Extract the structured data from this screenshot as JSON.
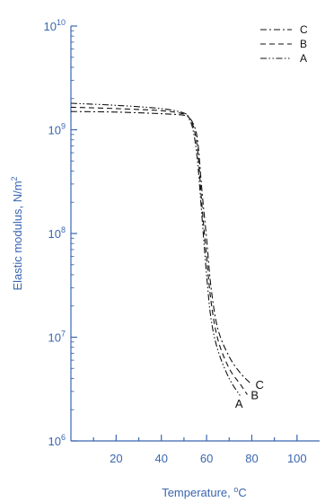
{
  "chart_data": {
    "type": "line",
    "xlabel": "Temperature, ",
    "xlabel_unit_sup": "o",
    "xlabel_unit": "C",
    "ylabel": "Elastic modulus, N/m",
    "ylabel_sup": "2",
    "y_scale": "log",
    "xlim": [
      0,
      110
    ],
    "ylim": [
      1000000,
      10000000000
    ],
    "x_ticks": [
      20,
      40,
      60,
      80,
      100
    ],
    "y_ticks": [
      {
        "value": 1000000,
        "base": "10",
        "exp": "6"
      },
      {
        "value": 10000000,
        "base": "10",
        "exp": "7"
      },
      {
        "value": 100000000,
        "base": "10",
        "exp": "8"
      },
      {
        "value": 1000000000,
        "base": "10",
        "exp": "9"
      },
      {
        "value": 10000000000,
        "base": "10",
        "exp": "10"
      }
    ],
    "grid": false,
    "legend_position": "top-right",
    "line_color": "#111111",
    "axis_color": "#3a66b0",
    "series": [
      {
        "name": "C",
        "dash": "dashdot",
        "points": [
          [
            0,
            1500000000
          ],
          [
            20,
            1480000000
          ],
          [
            40,
            1430000000
          ],
          [
            50,
            1380000000
          ],
          [
            52,
            1330000000
          ],
          [
            54,
            1150000000
          ],
          [
            56,
            800000000
          ],
          [
            58,
            250000000
          ],
          [
            60,
            90000000
          ],
          [
            62,
            30000000
          ],
          [
            65,
            12000000
          ],
          [
            70,
            6500000
          ],
          [
            75,
            4500000
          ],
          [
            80,
            3500000
          ]
        ]
      },
      {
        "name": "B",
        "dash": "dashed",
        "points": [
          [
            0,
            1650000000
          ],
          [
            20,
            1600000000
          ],
          [
            40,
            1530000000
          ],
          [
            50,
            1420000000
          ],
          [
            52,
            1330000000
          ],
          [
            54,
            1100000000
          ],
          [
            56,
            650000000
          ],
          [
            58,
            180000000
          ],
          [
            60,
            60000000
          ],
          [
            62,
            22000000
          ],
          [
            65,
            9500000
          ],
          [
            70,
            5000000
          ],
          [
            75,
            3500000
          ],
          [
            78,
            2800000
          ]
        ]
      },
      {
        "name": "A",
        "dash": "dashdotdot",
        "points": [
          [
            0,
            1800000000
          ],
          [
            20,
            1720000000
          ],
          [
            40,
            1600000000
          ],
          [
            50,
            1450000000
          ],
          [
            52,
            1300000000
          ],
          [
            54,
            1000000000
          ],
          [
            56,
            500000000
          ],
          [
            58,
            140000000
          ],
          [
            60,
            40000000
          ],
          [
            62,
            15000000
          ],
          [
            65,
            7500000
          ],
          [
            70,
            4000000
          ],
          [
            75,
            2700000
          ]
        ]
      }
    ]
  }
}
